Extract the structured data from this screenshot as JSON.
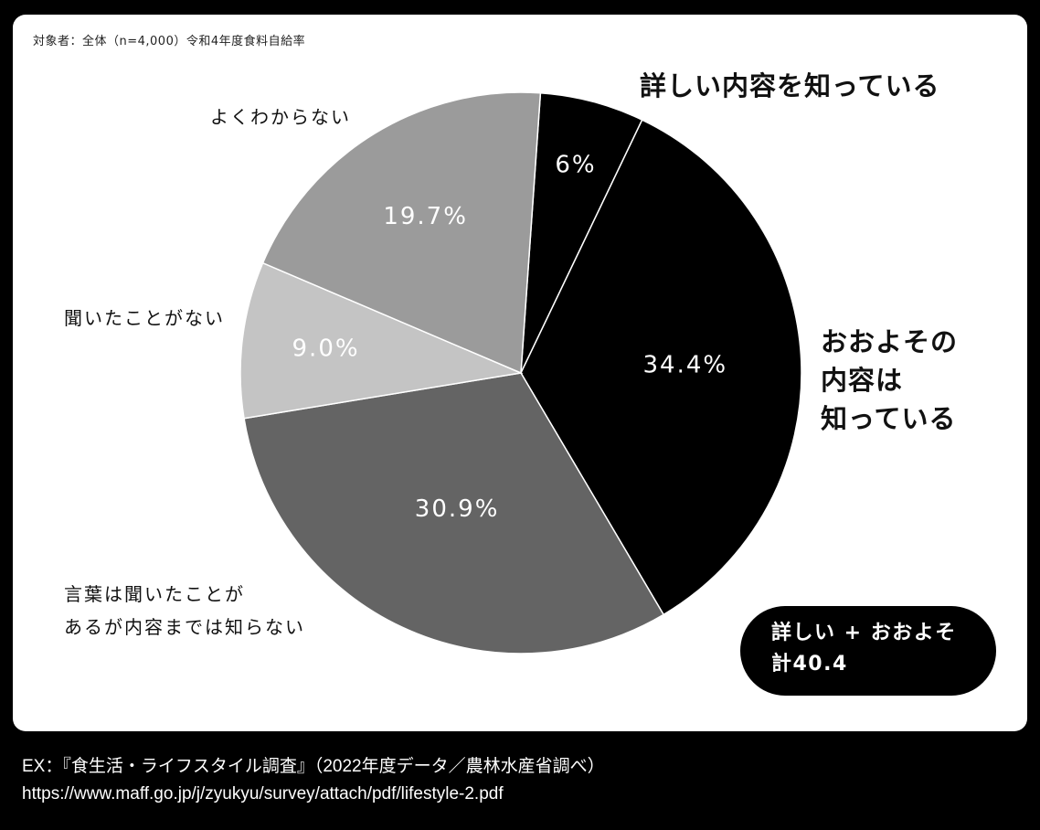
{
  "subtitle": "対象者：全体（n=4,000）令和4年度食料自給率",
  "labels": {
    "detailed": "詳しい内容を知っている",
    "rough_1": "おおよその",
    "rough_2": "内容は",
    "rough_3": "知っている",
    "heard_1": "言葉は聞いたことが",
    "heard_2": "あるが内容までは知らない",
    "never": "聞いたことがない",
    "unknown": "よくわからない"
  },
  "badge": {
    "line1": "詳しい + おおよそ",
    "line2": "計40.4"
  },
  "source": {
    "line1": "EX：『食生活・ライフスタイル調査』（2022年度データ／農林水産省調べ）",
    "line2": "https://www.maff.go.jp/j/zyukyu/survey/attach/pdf/lifestyle-2.pdf"
  },
  "chart_data": {
    "type": "pie",
    "title": "",
    "categories": [
      "詳しい内容を知っている",
      "おおよその内容は知っている",
      "言葉は聞いたことがあるが内容までは知らない",
      "聞いたことがない",
      "よくわからない"
    ],
    "values": [
      6,
      34.4,
      30.9,
      9.0,
      19.7
    ],
    "value_labels": [
      "6%",
      "34.4%",
      "30.9%",
      "9.0%",
      "19.7%"
    ],
    "colors": [
      "#000000",
      "#000000",
      "#646464",
      "#c4c4c4",
      "#9b9b9b"
    ],
    "label_colors": [
      "#ffffff",
      "#ffffff",
      "#ffffff",
      "#ffffff",
      "#ffffff"
    ],
    "start_angle_deg": 86,
    "direction": "clockwise",
    "slice_border": "#ffffff"
  }
}
